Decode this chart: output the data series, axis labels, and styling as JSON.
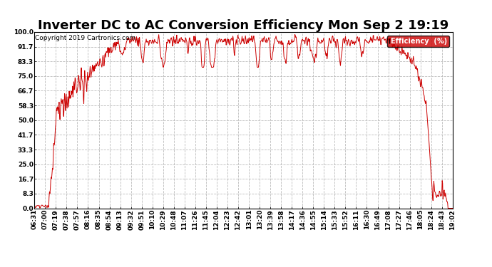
{
  "title": "Inverter DC to AC Conversion Efficiency Mon Sep 2 19:19",
  "copyright": "Copyright 2019 Cartronics.com",
  "legend_label": "Efficiency  (%)",
  "legend_bg": "#cc0000",
  "legend_text_color": "#ffffff",
  "line_color": "#cc0000",
  "background_color": "#ffffff",
  "grid_color": "#bbbbbb",
  "ylabel_values": [
    0.0,
    8.3,
    16.7,
    25.0,
    33.3,
    41.7,
    50.0,
    58.3,
    66.7,
    75.0,
    83.3,
    91.7,
    100.0
  ],
  "ylim": [
    0.0,
    100.0
  ],
  "x_tick_labels": [
    "06:31",
    "07:00",
    "07:19",
    "07:38",
    "07:57",
    "08:16",
    "08:35",
    "08:54",
    "09:13",
    "09:32",
    "09:51",
    "10:10",
    "10:29",
    "10:48",
    "11:07",
    "11:26",
    "11:45",
    "12:04",
    "12:23",
    "12:42",
    "13:01",
    "13:20",
    "13:39",
    "13:58",
    "14:17",
    "14:36",
    "14:55",
    "15:14",
    "15:33",
    "15:52",
    "16:11",
    "16:30",
    "16:49",
    "17:08",
    "17:27",
    "17:46",
    "18:05",
    "18:24",
    "18:43",
    "19:02"
  ],
  "title_fontsize": 13,
  "tick_fontsize": 6.5,
  "copyright_fontsize": 6.5
}
